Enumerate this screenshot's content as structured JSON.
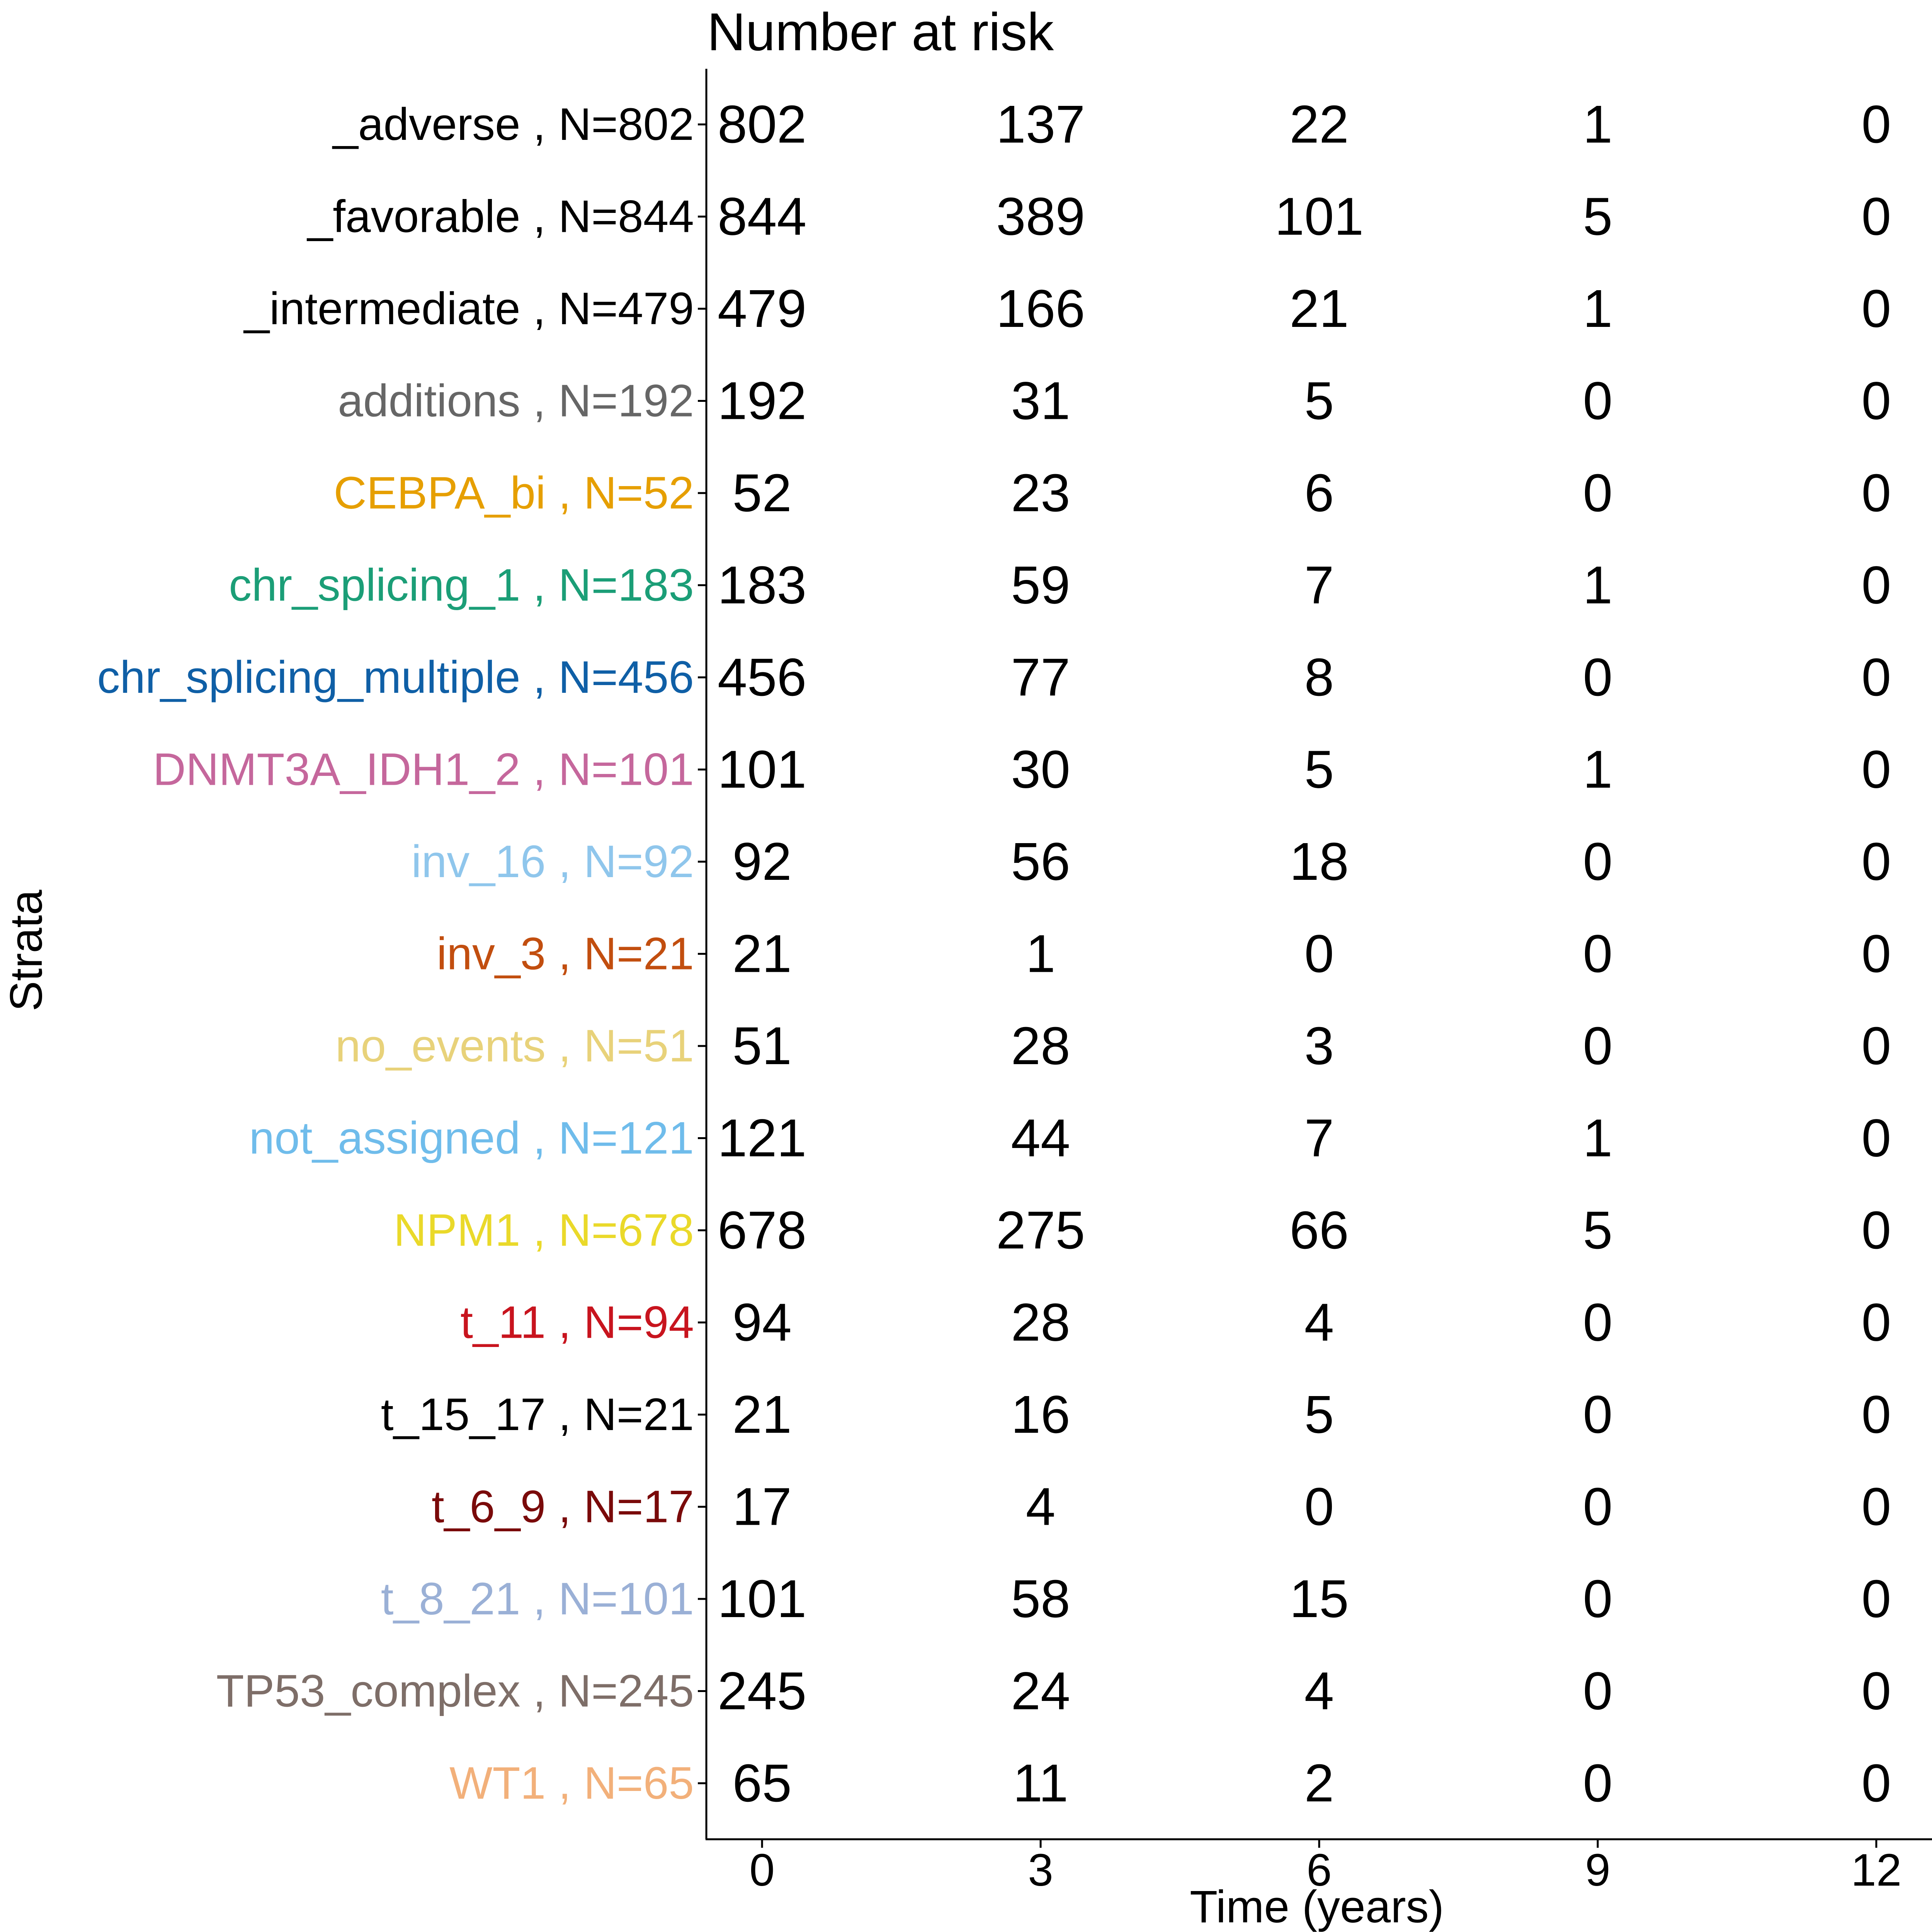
{
  "chart_data": {
    "type": "table",
    "title": "Number at risk",
    "xlabel": "Time (years)",
    "ylabel": "Strata",
    "x_ticks": [
      0,
      3,
      6,
      9,
      12
    ],
    "xlim": [
      -0.6,
      12.6
    ],
    "strata": [
      {
        "name": "_adverse",
        "n_label": "N=802",
        "color": "#000000",
        "values": [
          802,
          137,
          22,
          1,
          0
        ]
      },
      {
        "name": "_favorable",
        "n_label": "N=844",
        "color": "#000000",
        "values": [
          844,
          389,
          101,
          5,
          0
        ]
      },
      {
        "name": "_intermediate",
        "n_label": "N=479",
        "color": "#000000",
        "values": [
          479,
          166,
          21,
          1,
          0
        ]
      },
      {
        "name": "additions",
        "n_label": "N=192",
        "color": "#666666",
        "values": [
          192,
          31,
          5,
          0,
          0
        ]
      },
      {
        "name": "CEBPA_bi",
        "n_label": "N=52",
        "color": "#E69F00",
        "values": [
          52,
          23,
          6,
          0,
          0
        ]
      },
      {
        "name": "chr_splicing_1",
        "n_label": "N=183",
        "color": "#1B9E77",
        "values": [
          183,
          59,
          7,
          1,
          0
        ]
      },
      {
        "name": "chr_splicing_multiple",
        "n_label": "N=456",
        "color": "#0F5FA6",
        "values": [
          456,
          77,
          8,
          0,
          0
        ]
      },
      {
        "name": "DNMT3A_IDH1_2",
        "n_label": "N=101",
        "color": "#C5679C",
        "values": [
          101,
          30,
          5,
          1,
          0
        ]
      },
      {
        "name": "inv_16",
        "n_label": "N=92",
        "color": "#8FC6EC",
        "values": [
          92,
          56,
          18,
          0,
          0
        ]
      },
      {
        "name": "inv_3",
        "n_label": "N=21",
        "color": "#C24E0F",
        "values": [
          21,
          1,
          0,
          0,
          0
        ]
      },
      {
        "name": "no_events",
        "n_label": "N=51",
        "color": "#E8D27A",
        "values": [
          51,
          28,
          3,
          0,
          0
        ]
      },
      {
        "name": "not_assigned",
        "n_label": "N=121",
        "color": "#6FBCEB",
        "values": [
          121,
          44,
          7,
          1,
          0
        ]
      },
      {
        "name": "NPM1",
        "n_label": "N=678",
        "color": "#EAD92A",
        "values": [
          678,
          275,
          66,
          5,
          0
        ]
      },
      {
        "name": "t_11",
        "n_label": "N=94",
        "color": "#C8141E",
        "values": [
          94,
          28,
          4,
          0,
          0
        ]
      },
      {
        "name": "t_15_17",
        "n_label": "N=21",
        "color": "#000000",
        "values": [
          21,
          16,
          5,
          0,
          0
        ]
      },
      {
        "name": "t_6_9",
        "n_label": "N=17",
        "color": "#7A0A0A",
        "values": [
          17,
          4,
          0,
          0,
          0
        ]
      },
      {
        "name": "t_8_21",
        "n_label": "N=101",
        "color": "#9AB0D6",
        "values": [
          101,
          58,
          15,
          0,
          0
        ]
      },
      {
        "name": "TP53_complex",
        "n_label": "N=245",
        "color": "#7E6E68",
        "values": [
          245,
          24,
          4,
          0,
          0
        ]
      },
      {
        "name": "WT1",
        "n_label": "N=65",
        "color": "#F2B07A",
        "values": [
          65,
          11,
          2,
          0,
          0
        ]
      }
    ],
    "grid": false,
    "legend": "none"
  }
}
